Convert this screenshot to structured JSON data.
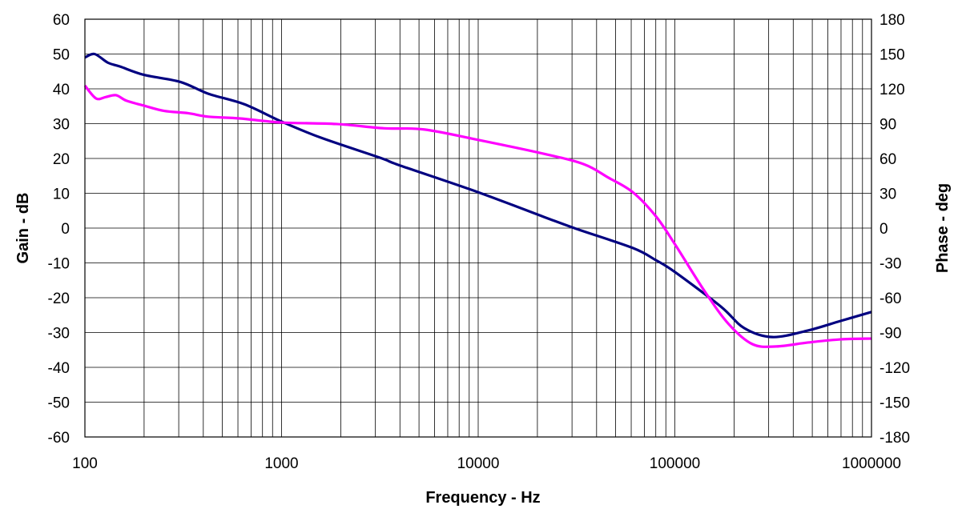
{
  "chart_data": {
    "type": "line",
    "title": "",
    "xlabel": "Frequency - Hz",
    "ylabel": "Gain - dB",
    "y2label": "Phase - deg",
    "xscale": "log",
    "xlim": [
      100,
      1000000
    ],
    "ylim": [
      -60,
      60
    ],
    "y2lim": [
      -180,
      180
    ],
    "grid": true,
    "legend": "none",
    "xticks": [
      "100",
      "1000",
      "10000",
      "100000",
      "1000000"
    ],
    "yticks": [
      "60",
      "50",
      "40",
      "30",
      "20",
      "10",
      "0",
      "-10",
      "-20",
      "-30",
      "-40",
      "-50",
      "-60"
    ],
    "y2ticks": [
      "180",
      "150",
      "120",
      "90",
      "60",
      "30",
      "0",
      "-30",
      "-60",
      "-90",
      "-120",
      "-150",
      "-180"
    ],
    "series": [
      {
        "axis": "left",
        "color": "#000080",
        "x": [
          100,
          112,
          131,
          151,
          200,
          305,
          424,
          645,
          1000,
          1580,
          3170,
          4000,
          10000,
          21600,
          31500,
          61000,
          80000,
          100000,
          171000,
          225000,
          313000,
          476000,
          694000,
          1000000
        ],
        "y": [
          49,
          50,
          47.5,
          46.4,
          44,
          42,
          38.6,
          35.6,
          30.6,
          26,
          20.2,
          18,
          10.3,
          3.2,
          -0.2,
          -5.7,
          -9.2,
          -12.6,
          -22.5,
          -28.7,
          -31.3,
          -29.4,
          -26.7,
          -24.1
        ]
      },
      {
        "axis": "right",
        "color": "#FF00FF",
        "x": [
          100,
          114,
          128,
          144,
          163,
          200,
          253,
          335,
          424,
          613,
          1000,
          1900,
          3320,
          5300,
          10000,
          21600,
          34500,
          46000,
          61000,
          80000,
          100000,
          141000,
          188000,
          248000,
          328000,
          476000,
          694000,
          1000000
        ],
        "y": [
          122.8,
          111.7,
          113,
          114.5,
          109.7,
          105.5,
          101,
          99,
          96,
          94.5,
          91,
          89.7,
          86,
          85,
          76,
          64,
          55,
          43.4,
          31,
          10.3,
          -13.8,
          -53.8,
          -82.8,
          -100,
          -102,
          -98.6,
          -95.9,
          -95.2
        ]
      }
    ]
  }
}
